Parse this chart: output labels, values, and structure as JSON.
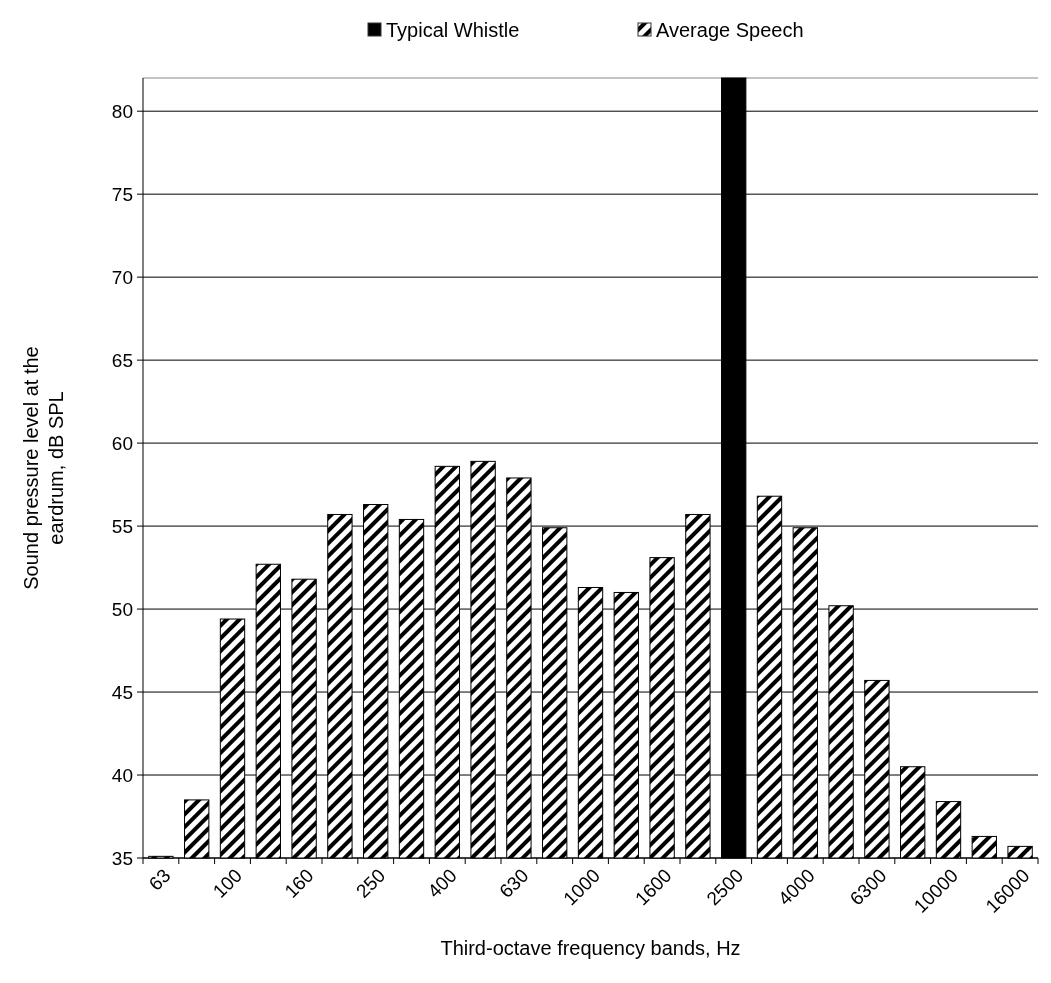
{
  "chart_data": {
    "type": "bar",
    "xlabel": "Third-octave frequency bands, Hz",
    "ylabel": "Sound pressure level at the eardrum, dB SPL",
    "categories": [
      "63",
      null,
      "100",
      null,
      "160",
      null,
      "250",
      null,
      "400",
      null,
      "630",
      null,
      "1000",
      null,
      "1600",
      null,
      "2500",
      null,
      "4000",
      null,
      "6300",
      null,
      "10000",
      null,
      "16000"
    ],
    "series": [
      {
        "name": "Typical Whistle",
        "color": "#000000",
        "values": [
          null,
          null,
          null,
          null,
          null,
          null,
          null,
          null,
          null,
          null,
          null,
          null,
          null,
          null,
          null,
          null,
          82,
          null,
          null,
          null,
          null,
          null,
          null,
          null,
          null
        ]
      },
      {
        "name": "Average Speech",
        "color": "#000000",
        "values": [
          35.1,
          38.5,
          49.4,
          52.7,
          51.8,
          55.7,
          56.3,
          55.4,
          58.6,
          58.9,
          57.9,
          54.9,
          51.3,
          51.0,
          53.1,
          55.7,
          null,
          56.8,
          54.9,
          50.2,
          45.7,
          40.5,
          38.4,
          36.3,
          35.7
        ]
      }
    ],
    "ylim": [
      35,
      82
    ],
    "yticks": [
      35,
      40,
      45,
      50,
      55,
      60,
      65,
      70,
      75,
      80
    ],
    "grid": "y",
    "legend": "top"
  }
}
